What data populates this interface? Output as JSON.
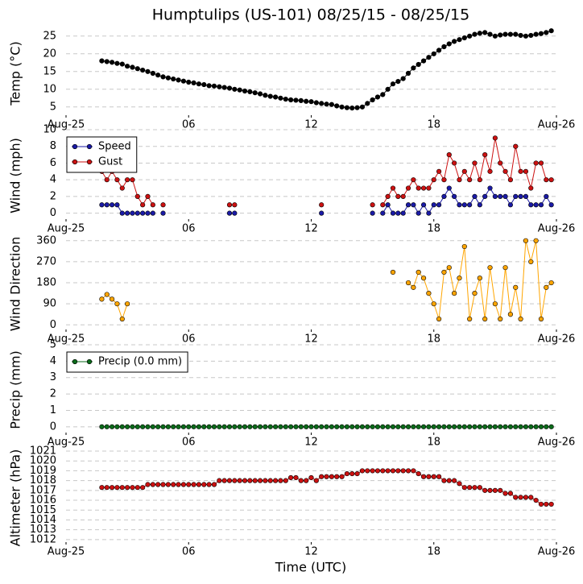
{
  "chart_data": [
    {
      "type": "line",
      "title": "Humptulips (US-101) 08/25/15 - 08/25/15",
      "y_label": "Temp (°C)",
      "x": [
        1.75,
        2,
        2.25,
        2.5,
        2.75,
        3,
        3.25,
        3.5,
        3.75,
        4,
        4.25,
        4.5,
        4.75,
        5,
        5.25,
        5.5,
        5.75,
        6,
        6.25,
        6.5,
        6.75,
        7,
        7.25,
        7.5,
        7.75,
        8,
        8.25,
        8.5,
        8.75,
        9,
        9.25,
        9.5,
        9.75,
        10,
        10.25,
        10.5,
        10.75,
        11,
        11.25,
        11.5,
        11.75,
        12,
        12.25,
        12.5,
        12.75,
        13,
        13.25,
        13.5,
        13.75,
        14,
        14.25,
        14.5,
        14.75,
        15,
        15.25,
        15.5,
        15.75,
        16,
        16.25,
        16.5,
        16.75,
        17,
        17.25,
        17.5,
        17.75,
        18,
        18.25,
        18.5,
        18.75,
        19,
        19.25,
        19.5,
        19.75,
        20,
        20.25,
        20.5,
        20.75,
        21,
        21.25,
        21.5,
        21.75,
        22,
        22.25,
        22.5,
        22.75,
        23,
        23.25,
        23.5,
        23.75
      ],
      "series": [
        {
          "color": "#000000",
          "values": [
            18.0,
            17.8,
            17.6,
            17.3,
            17.1,
            16.5,
            16.2,
            15.8,
            15.4,
            15.0,
            14.5,
            14.0,
            13.5,
            13.2,
            12.9,
            12.6,
            12.3,
            12.0,
            11.8,
            11.5,
            11.3,
            11.0,
            10.9,
            10.7,
            10.5,
            10.3,
            10.0,
            9.8,
            9.5,
            9.3,
            9.0,
            8.7,
            8.3,
            8.0,
            7.8,
            7.5,
            7.2,
            7.0,
            6.9,
            6.8,
            6.6,
            6.5,
            6.2,
            6.0,
            5.8,
            5.7,
            5.3,
            5.0,
            4.8,
            4.7,
            4.8,
            5.0,
            6.0,
            7.0,
            7.8,
            8.5,
            10.0,
            11.5,
            12.2,
            13.0,
            14.5,
            16.0,
            17.0,
            18.0,
            19.0,
            20.0,
            21.0,
            22.0,
            22.8,
            23.5,
            24.0,
            24.5,
            25.0,
            25.5,
            25.8,
            26.0,
            25.5,
            25.0,
            25.3,
            25.5,
            25.5,
            25.5,
            25.2,
            25.0,
            25.2,
            25.5,
            25.7,
            26.0,
            26.5
          ]
        }
      ],
      "xlim": [
        0,
        24
      ],
      "xticks": [
        {
          "value": 0,
          "label": "Aug-25"
        },
        {
          "value": 6,
          "label": "06"
        },
        12,
        18,
        {
          "value": 24,
          "label": "Aug-26"
        }
      ],
      "ylim": [
        2,
        27
      ],
      "yticks": [
        5,
        10,
        15,
        20,
        25
      ],
      "grid": true
    },
    {
      "type": "line",
      "y_label": "Wind (mph)",
      "x": [
        1.75,
        2,
        2.25,
        2.5,
        2.75,
        3,
        3.25,
        3.5,
        3.75,
        4,
        4.25,
        4.5,
        4.75,
        5,
        5.25,
        5.5,
        5.75,
        6,
        6.25,
        6.5,
        6.75,
        7,
        7.25,
        7.5,
        7.75,
        8,
        8.25,
        8.5,
        8.75,
        9,
        9.25,
        9.5,
        9.75,
        10,
        10.25,
        10.5,
        10.75,
        11,
        11.25,
        11.5,
        11.75,
        12,
        12.25,
        12.5,
        12.75,
        13,
        13.25,
        13.5,
        13.75,
        14,
        14.25,
        14.5,
        14.75,
        15,
        15.25,
        15.5,
        15.75,
        16,
        16.25,
        16.5,
        16.75,
        17,
        17.25,
        17.5,
        17.75,
        18,
        18.25,
        18.5,
        18.75,
        19,
        19.25,
        19.5,
        19.75,
        20,
        20.25,
        20.5,
        20.75,
        21,
        21.25,
        21.5,
        21.75,
        22,
        22.25,
        22.5,
        22.75,
        23,
        23.25,
        23.5,
        23.75
      ],
      "series": [
        {
          "name": "Speed",
          "color": "#1a1aa6",
          "values": [
            1,
            1,
            1,
            1,
            0,
            0,
            0,
            0,
            0,
            0,
            0,
            null,
            0,
            null,
            null,
            null,
            null,
            null,
            null,
            null,
            null,
            null,
            null,
            null,
            null,
            0,
            0,
            null,
            null,
            null,
            null,
            null,
            null,
            null,
            null,
            null,
            null,
            null,
            null,
            null,
            null,
            null,
            null,
            0,
            null,
            null,
            null,
            null,
            null,
            null,
            null,
            null,
            null,
            0,
            null,
            0,
            1,
            0,
            0,
            0,
            1,
            1,
            0,
            1,
            0,
            1,
            1,
            2,
            3,
            2,
            1,
            1,
            1,
            2,
            1,
            2,
            3,
            2,
            2,
            2,
            1,
            2,
            2,
            2,
            1,
            1,
            1,
            2,
            1
          ]
        },
        {
          "name": "Gust",
          "color": "#cc1111",
          "values": [
            5,
            4,
            5,
            4,
            3,
            4,
            4,
            2,
            1,
            2,
            1,
            null,
            1,
            null,
            null,
            null,
            null,
            null,
            null,
            null,
            null,
            null,
            null,
            null,
            null,
            1,
            1,
            null,
            null,
            null,
            null,
            null,
            null,
            null,
            null,
            null,
            null,
            null,
            null,
            null,
            null,
            null,
            null,
            1,
            null,
            null,
            null,
            null,
            null,
            null,
            null,
            null,
            null,
            1,
            null,
            1,
            2,
            3,
            2,
            2,
            3,
            4,
            3,
            3,
            3,
            4,
            5,
            4,
            7,
            6,
            4,
            5,
            4,
            6,
            4,
            7,
            5,
            9,
            6,
            5,
            4,
            8,
            5,
            5,
            3,
            6,
            6,
            4,
            4
          ]
        }
      ],
      "xlim": [
        0,
        24
      ],
      "xticks": [
        {
          "value": 0,
          "label": "Aug-25"
        },
        {
          "value": 6,
          "label": "06"
        },
        12,
        18,
        {
          "value": 24,
          "label": "Aug-26"
        }
      ],
      "ylim": [
        -1,
        10
      ],
      "yticks": [
        0,
        2,
        4,
        6,
        8,
        10
      ],
      "grid": true,
      "legend": "upper left"
    },
    {
      "type": "line",
      "y_label": "Wind Direction",
      "x": [
        1.75,
        2,
        2.25,
        2.5,
        2.75,
        3,
        3.25,
        3.5,
        3.75,
        4,
        4.25,
        4.5,
        4.75,
        5,
        5.25,
        5.5,
        5.75,
        6,
        6.25,
        6.5,
        6.75,
        7,
        7.25,
        7.5,
        7.75,
        8,
        8.25,
        8.5,
        8.75,
        9,
        9.25,
        9.5,
        9.75,
        10,
        10.25,
        10.5,
        10.75,
        11,
        11.25,
        11.5,
        11.75,
        12,
        12.25,
        12.5,
        12.75,
        13,
        13.25,
        13.5,
        13.75,
        14,
        14.25,
        14.5,
        14.75,
        15,
        15.25,
        15.5,
        15.75,
        16,
        16.25,
        16.5,
        16.75,
        17,
        17.25,
        17.5,
        17.75,
        18,
        18.25,
        18.5,
        18.75,
        19,
        19.25,
        19.5,
        19.75,
        20,
        20.25,
        20.5,
        20.75,
        21,
        21.25,
        21.5,
        21.75,
        22,
        22.25,
        22.5,
        22.75,
        23,
        23.25,
        23.5,
        23.75
      ],
      "series": [
        {
          "color": "#ffa500",
          "values": [
            110,
            130,
            110,
            90,
            25,
            90,
            null,
            null,
            null,
            null,
            null,
            null,
            null,
            null,
            null,
            null,
            null,
            null,
            null,
            null,
            null,
            null,
            null,
            null,
            null,
            null,
            null,
            null,
            null,
            null,
            null,
            null,
            null,
            null,
            null,
            null,
            null,
            null,
            null,
            null,
            null,
            null,
            null,
            null,
            null,
            null,
            null,
            null,
            null,
            null,
            null,
            null,
            null,
            null,
            null,
            null,
            null,
            225,
            null,
            null,
            180,
            160,
            225,
            200,
            135,
            90,
            25,
            225,
            245,
            135,
            200,
            335,
            25,
            135,
            200,
            25,
            245,
            90,
            25,
            245,
            45,
            160,
            25,
            360,
            270,
            360,
            25,
            160,
            180
          ]
        }
      ],
      "xlim": [
        0,
        24
      ],
      "xticks": [
        {
          "value": 0,
          "label": "Aug-25"
        },
        {
          "value": 6,
          "label": "06"
        },
        12,
        18,
        {
          "value": 24,
          "label": "Aug-26"
        }
      ],
      "ylim": [
        -30,
        380
      ],
      "yticks": [
        0,
        90,
        180,
        270,
        360
      ],
      "grid": true
    },
    {
      "type": "line",
      "y_label": "Precip (mm)",
      "x": [
        1.75,
        2,
        2.25,
        2.5,
        2.75,
        3,
        3.25,
        3.5,
        3.75,
        4,
        4.25,
        4.5,
        4.75,
        5,
        5.25,
        5.5,
        5.75,
        6,
        6.25,
        6.5,
        6.75,
        7,
        7.25,
        7.5,
        7.75,
        8,
        8.25,
        8.5,
        8.75,
        9,
        9.25,
        9.5,
        9.75,
        10,
        10.25,
        10.5,
        10.75,
        11,
        11.25,
        11.5,
        11.75,
        12,
        12.25,
        12.5,
        12.75,
        13,
        13.25,
        13.5,
        13.75,
        14,
        14.25,
        14.5,
        14.75,
        15,
        15.25,
        15.5,
        15.75,
        16,
        16.25,
        16.5,
        16.75,
        17,
        17.25,
        17.5,
        17.75,
        18,
        18.25,
        18.5,
        18.75,
        19,
        19.25,
        19.5,
        19.75,
        20,
        20.25,
        20.5,
        20.75,
        21,
        21.25,
        21.5,
        21.75,
        22,
        22.25,
        22.5,
        22.75,
        23,
        23.25,
        23.5,
        23.75
      ],
      "series": [
        {
          "name": "Precip (0.0 mm)",
          "color": "#0b6b1a",
          "values": [
            0,
            0,
            0,
            0,
            0,
            0,
            0,
            0,
            0,
            0,
            0,
            0,
            0,
            0,
            0,
            0,
            0,
            0,
            0,
            0,
            0,
            0,
            0,
            0,
            0,
            0,
            0,
            0,
            0,
            0,
            0,
            0,
            0,
            0,
            0,
            0,
            0,
            0,
            0,
            0,
            0,
            0,
            0,
            0,
            0,
            0,
            0,
            0,
            0,
            0,
            0,
            0,
            0,
            0,
            0,
            0,
            0,
            0,
            0,
            0,
            0,
            0,
            0,
            0,
            0,
            0,
            0,
            0,
            0,
            0,
            0,
            0,
            0,
            0,
            0,
            0,
            0,
            0,
            0,
            0,
            0,
            0,
            0,
            0,
            0,
            0,
            0,
            0,
            0
          ]
        }
      ],
      "xlim": [
        0,
        24
      ],
      "xticks": [
        {
          "value": 0,
          "label": "Aug-25"
        },
        {
          "value": 6,
          "label": "06"
        },
        12,
        18,
        {
          "value": 24,
          "label": "Aug-26"
        }
      ],
      "ylim": [
        -0.5,
        5
      ],
      "yticks": [
        0,
        1,
        2,
        3,
        4,
        5
      ],
      "grid": true,
      "legend": "upper left"
    },
    {
      "type": "line",
      "y_label": "Altimeter (hPa)",
      "x_label": "Time (UTC)",
      "x": [
        1.75,
        2,
        2.25,
        2.5,
        2.75,
        3,
        3.25,
        3.5,
        3.75,
        4,
        4.25,
        4.5,
        4.75,
        5,
        5.25,
        5.5,
        5.75,
        6,
        6.25,
        6.5,
        6.75,
        7,
        7.25,
        7.5,
        7.75,
        8,
        8.25,
        8.5,
        8.75,
        9,
        9.25,
        9.5,
        9.75,
        10,
        10.25,
        10.5,
        10.75,
        11,
        11.25,
        11.5,
        11.75,
        12,
        12.25,
        12.5,
        12.75,
        13,
        13.25,
        13.5,
        13.75,
        14,
        14.25,
        14.5,
        14.75,
        15,
        15.25,
        15.5,
        15.75,
        16,
        16.25,
        16.5,
        16.75,
        17,
        17.25,
        17.5,
        17.75,
        18,
        18.25,
        18.5,
        18.75,
        19,
        19.25,
        19.5,
        19.75,
        20,
        20.25,
        20.5,
        20.75,
        21,
        21.25,
        21.5,
        21.75,
        22,
        22.25,
        22.5,
        22.75,
        23,
        23.25,
        23.5,
        23.75
      ],
      "series": [
        {
          "color": "#cc1111",
          "values": [
            1017.3,
            1017.3,
            1017.3,
            1017.3,
            1017.3,
            1017.3,
            1017.3,
            1017.3,
            1017.3,
            1017.6,
            1017.6,
            1017.6,
            1017.6,
            1017.6,
            1017.6,
            1017.6,
            1017.6,
            1017.6,
            1017.6,
            1017.6,
            1017.6,
            1017.6,
            1017.6,
            1018,
            1018,
            1018,
            1018,
            1018,
            1018,
            1018,
            1018,
            1018,
            1018,
            1018,
            1018,
            1018,
            1018,
            1018.3,
            1018.3,
            1018,
            1018,
            1018.3,
            1018,
            1018.4,
            1018.4,
            1018.4,
            1018.4,
            1018.4,
            1018.7,
            1018.7,
            1018.7,
            1019,
            1019,
            1019,
            1019,
            1019,
            1019,
            1019,
            1019,
            1019,
            1019,
            1019,
            1018.7,
            1018.4,
            1018.4,
            1018.4,
            1018.4,
            1018,
            1018,
            1018,
            1017.7,
            1017.3,
            1017.3,
            1017.3,
            1017.3,
            1017,
            1017,
            1017,
            1017,
            1016.7,
            1016.7,
            1016.3,
            1016.3,
            1016.3,
            1016.3,
            1016,
            1015.6,
            1015.6,
            1015.6
          ]
        }
      ],
      "xlim": [
        0,
        24
      ],
      "xticks": [
        {
          "value": 0,
          "label": "Aug-25"
        },
        {
          "value": 6,
          "label": "06"
        },
        12,
        18,
        {
          "value": 24,
          "label": "Aug-26"
        }
      ],
      "ylim": [
        1011.5,
        1021
      ],
      "yticks": [
        1012,
        1013,
        1014,
        1015,
        1016,
        1017,
        1018,
        1019,
        1020,
        1021
      ],
      "grid": true
    }
  ]
}
